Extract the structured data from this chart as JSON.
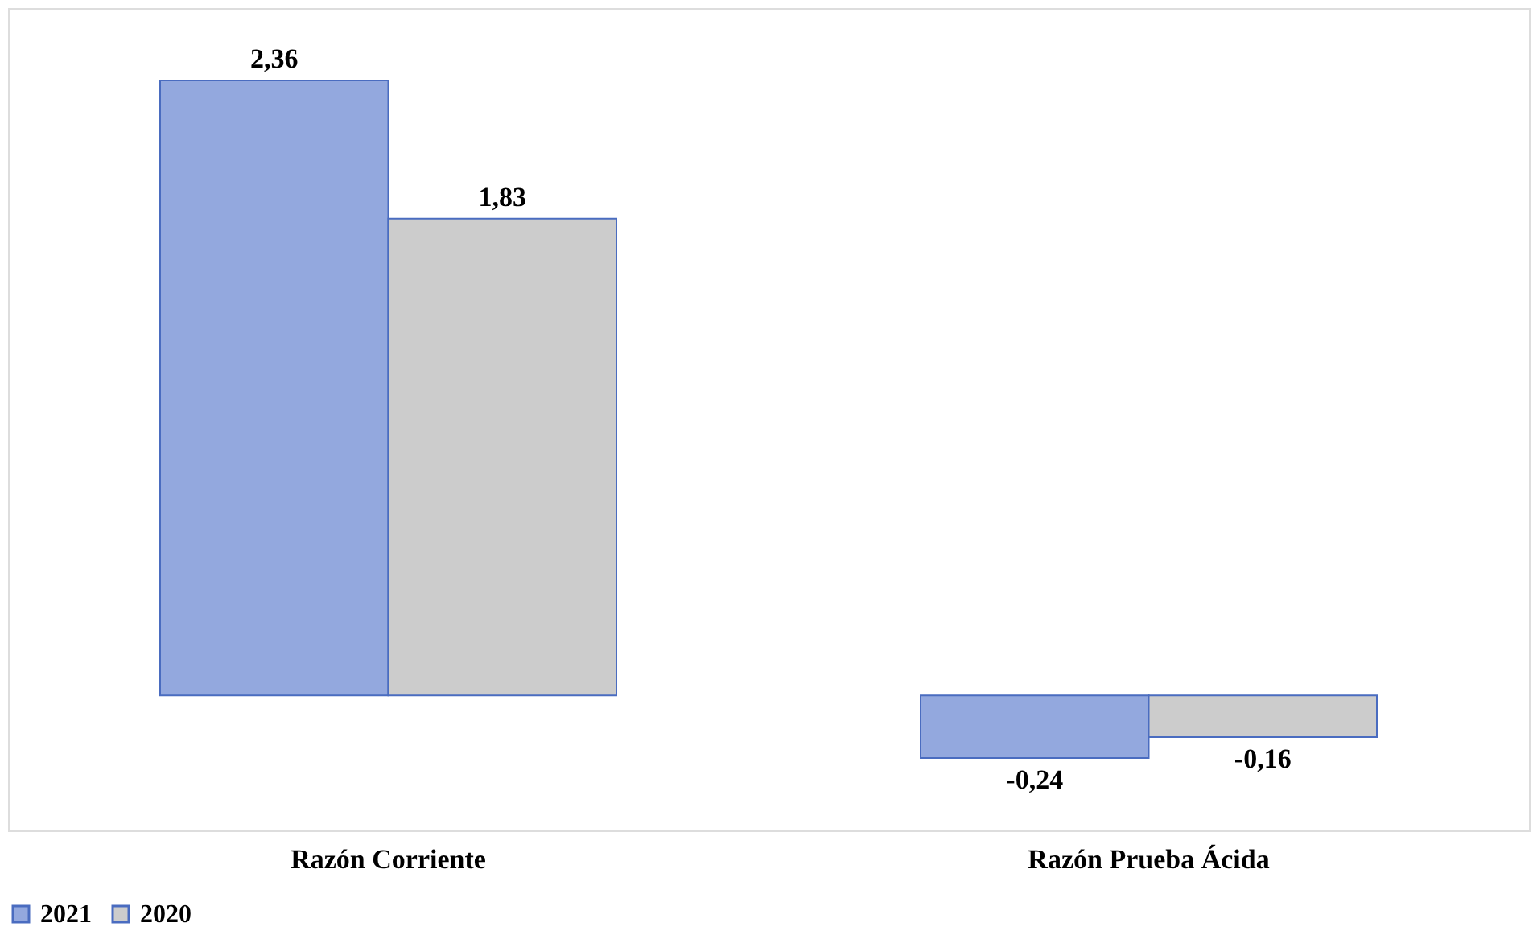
{
  "chart_data": {
    "type": "bar",
    "categories": [
      "Razón Corriente",
      "Razón Prueba Ácida"
    ],
    "series": [
      {
        "name": "2021",
        "color": "#93a8de",
        "values": [
          2.36,
          -0.24
        ],
        "value_labels": [
          "2,36",
          "-0,24"
        ]
      },
      {
        "name": "2020",
        "color": "#cccccc",
        "values": [
          1.83,
          -0.16
        ],
        "value_labels": [
          "1,83",
          "-0,16"
        ]
      }
    ],
    "legend": "bottom",
    "grid": false
  }
}
